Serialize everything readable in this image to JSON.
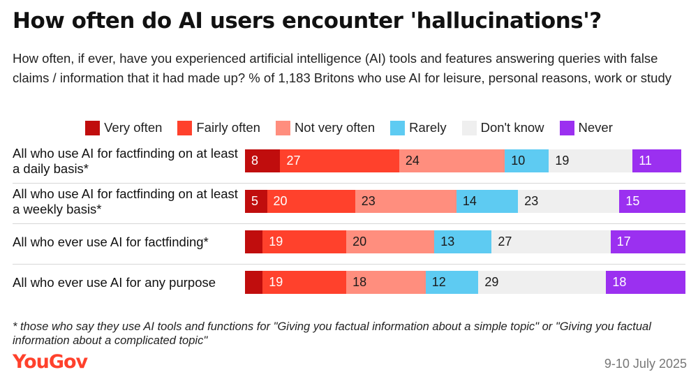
{
  "title": "How often do AI users encounter 'hallucinations'?",
  "subtitle": "How often, if ever, have you experienced artificial intelligence (AI) tools and features answering queries with false claims / information that it had made up? % of 1,183 Britons who use AI for leisure, personal reasons, work or study",
  "footnote": "* those who say they use AI tools and functions for \"Giving you factual information about a simple topic\" or \"Giving you factual information about a complicated topic\"",
  "brand": "YouGov",
  "date": "9-10 July 2025",
  "chart_data": {
    "type": "bar",
    "orientation": "horizontal",
    "stacked": true,
    "legend_position": "top",
    "categories": [
      "All who use AI for factfinding on at least a daily basis*",
      "All who use AI for factfinding on at least a weekly basis*",
      "All who ever use AI for factfinding*",
      "All who ever use AI for any purpose"
    ],
    "series": [
      {
        "name": "Very often",
        "color": "#c00d0d",
        "text_color": "#ffffff",
        "values": [
          8,
          5,
          4,
          4
        ],
        "labels": [
          "8",
          "5",
          "",
          ""
        ]
      },
      {
        "name": "Fairly often",
        "color": "#ff412c",
        "text_color": "#ffffff",
        "values": [
          27,
          20,
          19,
          19
        ],
        "labels": [
          "27",
          "20",
          "19",
          "19"
        ]
      },
      {
        "name": "Not very often",
        "color": "#ff8e7e",
        "text_color": "#1a1a1a",
        "values": [
          24,
          23,
          20,
          18
        ],
        "labels": [
          "24",
          "23",
          "20",
          "18"
        ]
      },
      {
        "name": "Rarely",
        "color": "#5ecbf2",
        "text_color": "#1a1a1a",
        "values": [
          10,
          14,
          13,
          12
        ],
        "labels": [
          "10",
          "14",
          "13",
          "12"
        ]
      },
      {
        "name": "Don't know",
        "color": "#efefef",
        "text_color": "#1a1a1a",
        "values": [
          19,
          23,
          27,
          29
        ],
        "labels": [
          "19",
          "23",
          "27",
          "29"
        ]
      },
      {
        "name": "Never",
        "color": "#9b30f0",
        "text_color": "#ffffff",
        "values": [
          11,
          15,
          17,
          18
        ],
        "labels": [
          "11",
          "15",
          "17",
          "18"
        ]
      }
    ],
    "xlim": [
      0,
      100
    ]
  }
}
